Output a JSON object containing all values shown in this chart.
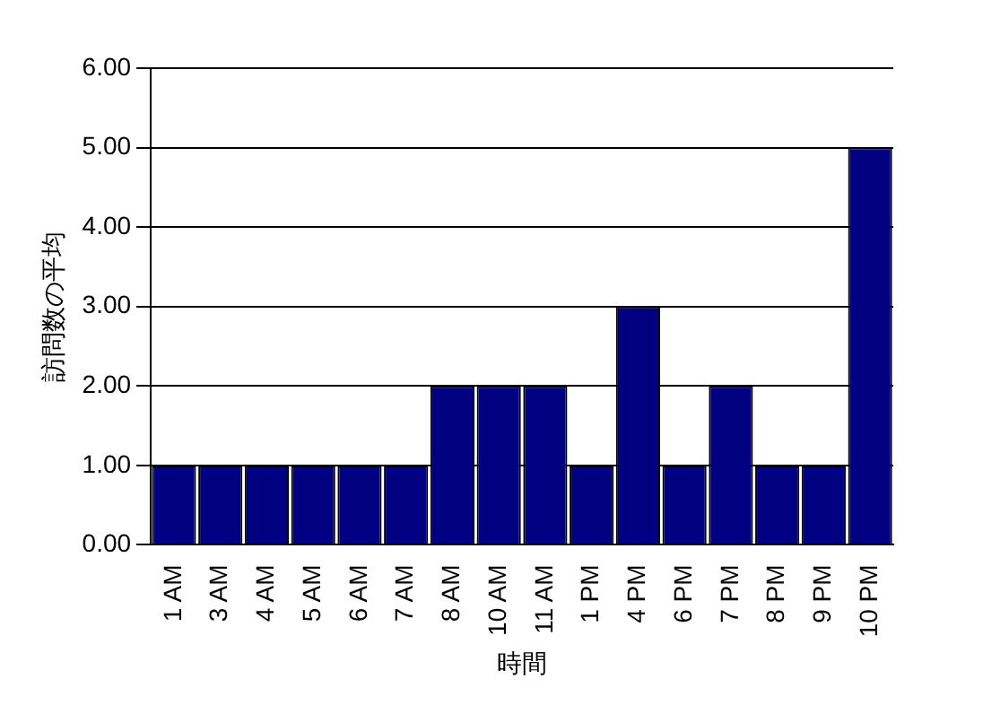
{
  "chart_data": {
    "type": "bar",
    "xlabel": "時間",
    "ylabel": "訪問数の平均",
    "categories": [
      "1 AM",
      "3 AM",
      "4 AM",
      "5 AM",
      "6 AM",
      "7 AM",
      "8 AM",
      "10 AM",
      "11 AM",
      "1 PM",
      "4 PM",
      "6 PM",
      "7 PM",
      "8 PM",
      "9 PM",
      "10 PM"
    ],
    "values": [
      1,
      1,
      1,
      1,
      1,
      1,
      2,
      2,
      2,
      1,
      3,
      1,
      2,
      1,
      1,
      5
    ],
    "color": "#000080",
    "ylim": [
      0,
      6
    ],
    "yticks": [
      {
        "value": 0,
        "label": "0.00"
      },
      {
        "value": 1,
        "label": "1.00"
      },
      {
        "value": 2,
        "label": "2.00"
      },
      {
        "value": 3,
        "label": "3.00"
      },
      {
        "value": 4,
        "label": "4.00"
      },
      {
        "value": 5,
        "label": "5.00"
      },
      {
        "value": 6,
        "label": "6.00"
      }
    ],
    "grid": "y"
  }
}
